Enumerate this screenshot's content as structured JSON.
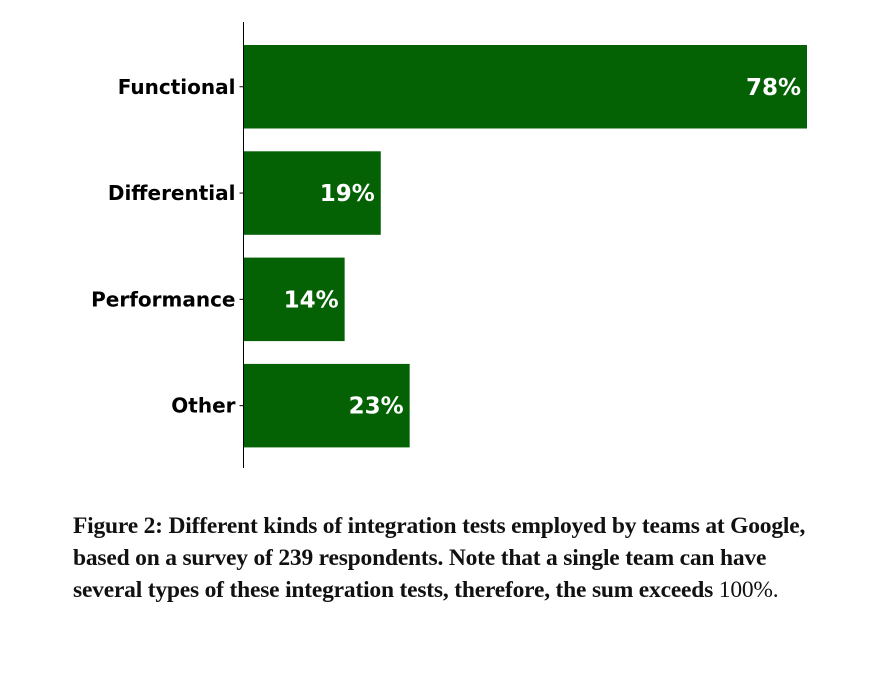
{
  "chart_data": {
    "type": "bar",
    "orientation": "horizontal",
    "categories": [
      "Functional",
      "Differential",
      "Performance",
      "Other"
    ],
    "values": [
      78,
      19,
      14,
      23
    ],
    "data_labels": [
      "78%",
      "19%",
      "14%",
      "23%"
    ],
    "xlim": [
      0,
      78
    ],
    "bar_color": "#046104",
    "grid": false,
    "legend": "none",
    "title": "",
    "xlabel": "",
    "ylabel": ""
  },
  "caption": {
    "text": "Figure 2: Different kinds of integration tests employed by teams at Google, based on a survey of 239 respondents. Note that a single team can have several types of these integration tests, therefore, the sum exceeds ",
    "number": "100%."
  }
}
